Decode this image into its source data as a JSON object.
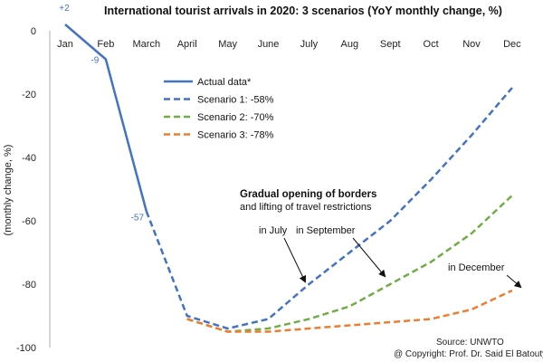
{
  "chart_data": {
    "type": "line",
    "title": "International tourist arrivals in 2020: 3 scenarios (YoY monthly change, %)",
    "ylabel": "(monthly change, %)",
    "xlabel": "",
    "ylim": [
      -100,
      0
    ],
    "yticks": [
      0,
      -20,
      -40,
      -60,
      -80,
      -100
    ],
    "categories": [
      "Jan",
      "Feb",
      "March",
      "April",
      "May",
      "June",
      "July",
      "Aug",
      "Sept",
      "Oct",
      "Nov",
      "Dec"
    ],
    "grid": false,
    "legend_position": "upper-left inside plot",
    "series": [
      {
        "name": "Actual data*",
        "color": "#4472C4",
        "style": "solid",
        "values": [
          2,
          -9,
          -57,
          null,
          null,
          null,
          null,
          null,
          null,
          null,
          null,
          null
        ]
      },
      {
        "name": "Scenario 1:  -58%",
        "color": "#4472C4",
        "style": "dashed",
        "values": [
          null,
          null,
          -57,
          -90,
          -94,
          -91,
          -80,
          -70,
          -60,
          -47,
          -33,
          -18
        ]
      },
      {
        "name": "Scenario 2:  -70%",
        "color": "#70AD47",
        "style": "dashed",
        "values": [
          null,
          null,
          null,
          -91,
          -95,
          -94,
          -91,
          -87,
          -80,
          -73,
          -64,
          -52
        ]
      },
      {
        "name": "Scenario 3:  -78%",
        "color": "#ED7D31",
        "style": "dashed",
        "values": [
          null,
          null,
          null,
          -91,
          -95,
          -95,
          -94,
          -93,
          -92,
          -91,
          -88,
          -82
        ]
      }
    ],
    "data_labels": [
      {
        "text": "+2",
        "series": 0,
        "index": 0
      },
      {
        "text": "-9",
        "series": 0,
        "index": 1
      },
      {
        "text": "-57",
        "series": 0,
        "index": 2
      }
    ],
    "annotations": {
      "heading_line1": "Gradual opening of borders",
      "heading_line2": "and lifting of travel restrictions",
      "july": "in July",
      "september": "in September",
      "december": "in December"
    },
    "source": "Source: UNWTO",
    "copyright": "@ Copyright: Prof. Dr. Said El Batouty"
  }
}
